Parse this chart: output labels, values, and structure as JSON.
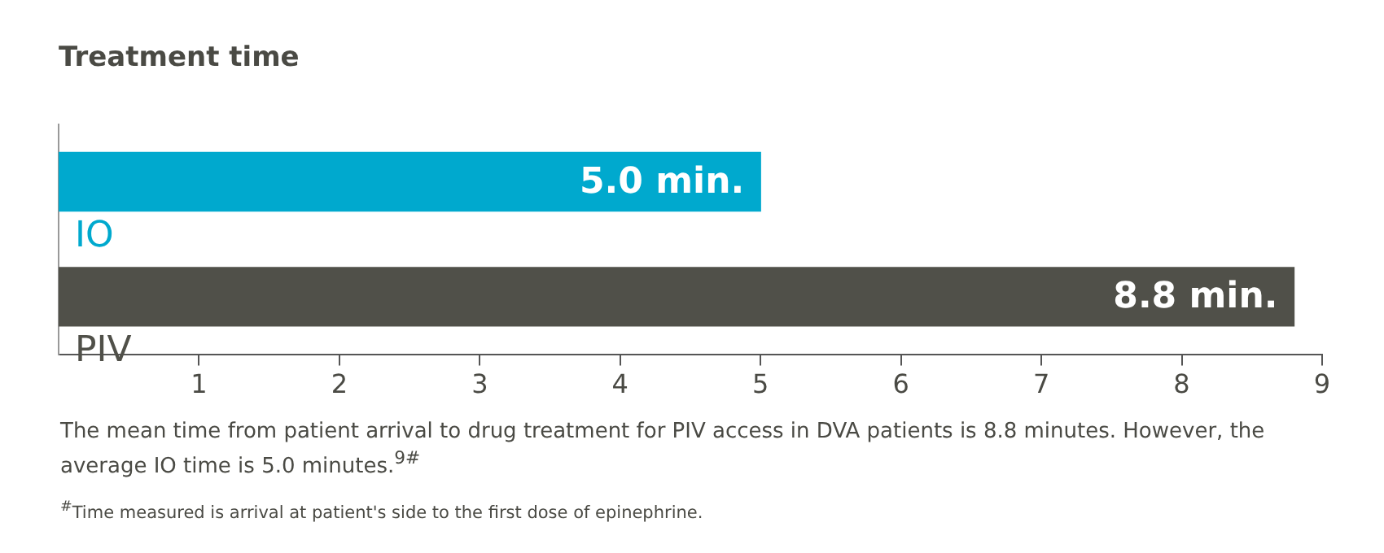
{
  "chart_data": {
    "type": "bar",
    "orientation": "horizontal",
    "title": "Treatment time",
    "categories": [
      "IO",
      "PIV"
    ],
    "values": [
      5.0,
      8.8
    ],
    "colors": [
      "#00a9ce",
      "#505049"
    ],
    "value_labels": [
      "5.0 min.",
      "8.8 min."
    ],
    "xlim": [
      0,
      9
    ],
    "xticks": [
      1,
      2,
      3,
      4,
      5,
      6,
      7,
      8,
      9
    ],
    "grid": false,
    "annotations": [
      "The mean time from patient arrival to drug treatment for PIV access in DVA patients is 8.8 minutes. However, the average IO time is 5.0 minutes.$^{9#}$",
      "$^{#}$Time measured is arrival at patient's side to the first dose of epinephrine."
    ]
  }
}
